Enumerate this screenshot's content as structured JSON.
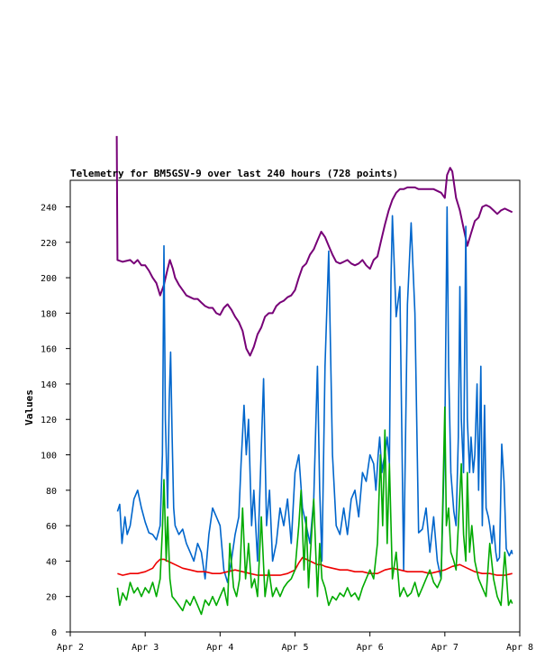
{
  "chart_data": {
    "type": "line",
    "title": "Telemetry for BM5GSV-9 over last 240 hours (728 points)",
    "xlabel": "",
    "ylabel": "Values",
    "x_ticks": [
      "Apr 2",
      "Apr 3",
      "Apr 4",
      "Apr 5",
      "Apr 6",
      "Apr 7",
      "Apr 8"
    ],
    "x_range_days": [
      2.0,
      8.0
    ],
    "ylim": [
      0,
      255
    ],
    "y_ticks": [
      0,
      20,
      40,
      60,
      80,
      100,
      120,
      140,
      160,
      180,
      200,
      220,
      240
    ],
    "grid": false,
    "legend": "none",
    "series": [
      {
        "color": "#770077",
        "x": [
          2.62,
          2.63,
          2.7,
          2.8,
          2.85,
          2.9,
          2.95,
          3.0,
          3.05,
          3.1,
          3.15,
          3.2,
          3.25,
          3.3,
          3.33,
          3.37,
          3.4,
          3.45,
          3.5,
          3.55,
          3.6,
          3.65,
          3.7,
          3.75,
          3.8,
          3.85,
          3.9,
          3.95,
          4.0,
          4.05,
          4.1,
          4.15,
          4.2,
          4.25,
          4.3,
          4.35,
          4.4,
          4.45,
          4.5,
          4.55,
          4.6,
          4.65,
          4.7,
          4.75,
          4.8,
          4.85,
          4.9,
          4.95,
          5.0,
          5.05,
          5.1,
          5.15,
          5.2,
          5.25,
          5.3,
          5.35,
          5.4,
          5.45,
          5.5,
          5.55,
          5.6,
          5.65,
          5.7,
          5.75,
          5.8,
          5.85,
          5.9,
          5.95,
          6.0,
          6.05,
          6.1,
          6.15,
          6.2,
          6.25,
          6.3,
          6.35,
          6.4,
          6.45,
          6.5,
          6.55,
          6.6,
          6.65,
          6.7,
          6.75,
          6.8,
          6.85,
          6.9,
          6.95,
          7.0,
          7.03,
          7.07,
          7.1,
          7.15,
          7.2,
          7.25,
          7.3,
          7.35,
          7.4,
          7.45,
          7.5,
          7.55,
          7.6,
          7.65,
          7.7,
          7.75,
          7.8,
          7.85,
          7.9
        ],
        "values": [
          280,
          210,
          209,
          210,
          208,
          210,
          207,
          207,
          204,
          200,
          197,
          190,
          196,
          205,
          210,
          205,
          200,
          196,
          193,
          190,
          189,
          188,
          188,
          186,
          184,
          183,
          183,
          180,
          179,
          183,
          185,
          182,
          178,
          175,
          170,
          160,
          156,
          161,
          168,
          172,
          178,
          180,
          180,
          184,
          186,
          187,
          189,
          190,
          193,
          200,
          206,
          208,
          213,
          216,
          221,
          226,
          223,
          218,
          213,
          209,
          208,
          209,
          210,
          208,
          207,
          208,
          210,
          207,
          205,
          210,
          212,
          221,
          230,
          238,
          244,
          248,
          250,
          250,
          251,
          251,
          251,
          250,
          250,
          250,
          250,
          250,
          249,
          248,
          245,
          258,
          262,
          260,
          245,
          238,
          228,
          218,
          225,
          232,
          234,
          240,
          241,
          240,
          238,
          236,
          238,
          239,
          238,
          237
        ]
      },
      {
        "color": "#0066cc",
        "x": [
          2.63,
          2.66,
          2.69,
          2.73,
          2.76,
          2.8,
          2.85,
          2.9,
          2.95,
          3.0,
          3.05,
          3.1,
          3.15,
          3.2,
          3.23,
          3.25,
          3.27,
          3.3,
          3.32,
          3.34,
          3.36,
          3.38,
          3.4,
          3.45,
          3.5,
          3.55,
          3.6,
          3.65,
          3.7,
          3.75,
          3.8,
          3.85,
          3.9,
          3.95,
          4.0,
          4.05,
          4.1,
          4.15,
          4.2,
          4.25,
          4.28,
          4.32,
          4.35,
          4.38,
          4.42,
          4.45,
          4.5,
          4.54,
          4.58,
          4.62,
          4.66,
          4.7,
          4.75,
          4.8,
          4.85,
          4.9,
          4.95,
          5.0,
          5.05,
          5.1,
          5.15,
          5.2,
          5.25,
          5.3,
          5.33,
          5.36,
          5.4,
          5.45,
          5.5,
          5.55,
          5.6,
          5.65,
          5.7,
          5.75,
          5.8,
          5.85,
          5.9,
          5.95,
          6.0,
          6.05,
          6.08,
          6.11,
          6.13,
          6.16,
          6.18,
          6.2,
          6.23,
          6.26,
          6.28,
          6.3,
          6.35,
          6.4,
          6.45,
          6.5,
          6.55,
          6.6,
          6.65,
          6.7,
          6.75,
          6.8,
          6.85,
          6.9,
          6.95,
          6.98,
          7.0,
          7.03,
          7.05,
          7.08,
          7.12,
          7.15,
          7.18,
          7.2,
          7.22,
          7.25,
          7.28,
          7.3,
          7.33,
          7.35,
          7.38,
          7.4,
          7.43,
          7.45,
          7.48,
          7.5,
          7.53,
          7.55,
          7.58,
          7.6,
          7.63,
          7.65,
          7.68,
          7.7,
          7.73,
          7.76,
          7.79,
          7.82,
          7.86,
          7.89,
          7.9
        ],
        "values": [
          68,
          72,
          50,
          65,
          55,
          60,
          75,
          80,
          70,
          62,
          56,
          55,
          52,
          60,
          100,
          218,
          120,
          70,
          130,
          158,
          110,
          70,
          60,
          55,
          58,
          50,
          45,
          40,
          50,
          45,
          30,
          55,
          70,
          65,
          60,
          35,
          28,
          40,
          55,
          65,
          95,
          128,
          100,
          120,
          60,
          80,
          40,
          90,
          143,
          60,
          80,
          40,
          50,
          70,
          60,
          75,
          50,
          90,
          100,
          70,
          60,
          50,
          75,
          150,
          80,
          40,
          150,
          215,
          100,
          60,
          55,
          70,
          55,
          75,
          80,
          65,
          90,
          85,
          100,
          95,
          80,
          100,
          110,
          90,
          96,
          100,
          110,
          95,
          198,
          235,
          178,
          195,
          35,
          185,
          231,
          180,
          56,
          58,
          70,
          45,
          65,
          40,
          30,
          80,
          110,
          240,
          150,
          90,
          68,
          60,
          110,
          195,
          120,
          90,
          229,
          120,
          90,
          110,
          90,
          100,
          140,
          80,
          150,
          60,
          128,
          70,
          65,
          60,
          50,
          60,
          45,
          40,
          42,
          106,
          85,
          47,
          43,
          46,
          44
        ],
        "note_x_in_days": true
      },
      {
        "color": "#ee0000",
        "x": [
          2.63,
          2.7,
          2.8,
          2.9,
          3.0,
          3.1,
          3.15,
          3.2,
          3.25,
          3.3,
          3.35,
          3.4,
          3.45,
          3.5,
          3.6,
          3.7,
          3.8,
          3.9,
          4.0,
          4.1,
          4.2,
          4.3,
          4.4,
          4.5,
          4.6,
          4.7,
          4.8,
          4.9,
          5.0,
          5.05,
          5.1,
          5.15,
          5.2,
          5.25,
          5.3,
          5.35,
          5.4,
          5.5,
          5.6,
          5.7,
          5.8,
          5.9,
          6.0,
          6.1,
          6.2,
          6.3,
          6.4,
          6.5,
          6.6,
          6.7,
          6.8,
          6.9,
          7.0,
          7.1,
          7.2,
          7.3,
          7.4,
          7.5,
          7.6,
          7.7,
          7.8,
          7.9
        ],
        "values": [
          33,
          32,
          33,
          33,
          34,
          36,
          39,
          41,
          41,
          40,
          39,
          38,
          37,
          36,
          35,
          34,
          34,
          33,
          33,
          34,
          35,
          34,
          33,
          32,
          32,
          32,
          32,
          33,
          35,
          39,
          42,
          41,
          40,
          39,
          38,
          38,
          37,
          36,
          35,
          35,
          34,
          34,
          33,
          33,
          35,
          36,
          35,
          34,
          34,
          34,
          33,
          34,
          35,
          37,
          38,
          36,
          34,
          33,
          33,
          32,
          32,
          33
        ]
      },
      {
        "color": "#00aa00",
        "x": [
          2.63,
          2.66,
          2.7,
          2.75,
          2.8,
          2.85,
          2.9,
          2.95,
          3.0,
          3.05,
          3.1,
          3.15,
          3.2,
          3.23,
          3.25,
          3.28,
          3.3,
          3.33,
          3.36,
          3.4,
          3.45,
          3.5,
          3.55,
          3.6,
          3.65,
          3.7,
          3.75,
          3.8,
          3.85,
          3.9,
          3.95,
          4.0,
          4.05,
          4.1,
          4.13,
          4.18,
          4.22,
          4.26,
          4.3,
          4.34,
          4.38,
          4.42,
          4.46,
          4.5,
          4.55,
          4.6,
          4.65,
          4.7,
          4.75,
          4.8,
          4.85,
          4.9,
          4.95,
          5.0,
          5.05,
          5.08,
          5.12,
          5.15,
          5.18,
          5.2,
          5.25,
          5.3,
          5.33,
          5.36,
          5.4,
          5.45,
          5.5,
          5.55,
          5.6,
          5.65,
          5.7,
          5.75,
          5.8,
          5.85,
          5.9,
          5.95,
          6.0,
          6.05,
          6.1,
          6.14,
          6.17,
          6.2,
          6.23,
          6.26,
          6.3,
          6.35,
          6.4,
          6.45,
          6.5,
          6.55,
          6.6,
          6.65,
          6.7,
          6.75,
          6.8,
          6.85,
          6.9,
          6.95,
          7.0,
          7.02,
          7.05,
          7.08,
          7.12,
          7.15,
          7.18,
          7.22,
          7.25,
          7.28,
          7.3,
          7.33,
          7.36,
          7.4,
          7.45,
          7.5,
          7.55,
          7.6,
          7.65,
          7.7,
          7.75,
          7.8,
          7.85,
          7.88,
          7.9
        ],
        "values": [
          25,
          15,
          22,
          18,
          28,
          22,
          25,
          20,
          25,
          22,
          28,
          20,
          30,
          58,
          86,
          40,
          65,
          30,
          20,
          18,
          15,
          12,
          18,
          15,
          20,
          15,
          10,
          18,
          15,
          20,
          15,
          20,
          25,
          15,
          50,
          25,
          20,
          30,
          70,
          30,
          50,
          25,
          30,
          20,
          65,
          20,
          35,
          20,
          25,
          20,
          25,
          28,
          30,
          35,
          60,
          80,
          35,
          65,
          25,
          40,
          75,
          20,
          50,
          30,
          25,
          15,
          20,
          18,
          22,
          20,
          25,
          20,
          22,
          18,
          25,
          30,
          35,
          30,
          50,
          100,
          60,
          114,
          50,
          95,
          30,
          45,
          20,
          25,
          20,
          22,
          28,
          20,
          25,
          30,
          35,
          28,
          25,
          30,
          127,
          60,
          70,
          45,
          40,
          35,
          60,
          95,
          55,
          40,
          90,
          45,
          60,
          40,
          30,
          25,
          20,
          50,
          30,
          20,
          15,
          45,
          15,
          18,
          16
        ]
      }
    ]
  }
}
